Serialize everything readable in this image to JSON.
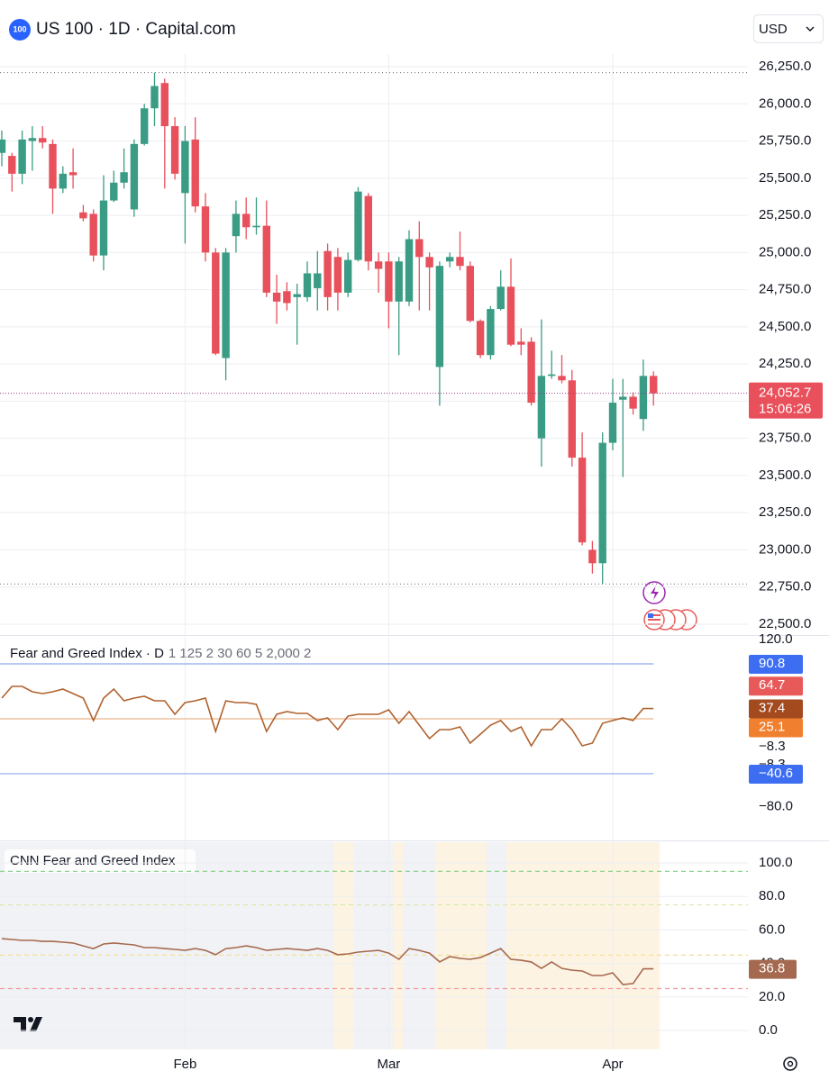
{
  "header": {
    "logo": "100",
    "title": "US 100 · 1D · Capital.com",
    "currency": "USD"
  },
  "chart_data": [
    {
      "type": "candlestick",
      "categories": [
        null,
        null,
        null,
        null,
        null,
        null,
        null,
        null,
        null,
        null,
        null,
        null,
        null,
        null,
        null,
        null,
        null,
        null,
        "Feb",
        null,
        null,
        null,
        null,
        null,
        null,
        null,
        null,
        null,
        null,
        null,
        null,
        null,
        null,
        null,
        null,
        null,
        null,
        null,
        "Mar",
        null,
        null,
        null,
        null,
        null,
        null,
        null,
        null,
        null,
        null,
        null,
        null,
        null,
        null,
        null,
        null,
        null,
        null,
        null,
        null,
        null,
        "Apr",
        null,
        null,
        null,
        null
      ],
      "open": [
        25670,
        25650,
        25530,
        25750,
        25770,
        25730,
        25430,
        25540,
        25270,
        25260,
        24980,
        25350,
        25470,
        25290,
        25730,
        25970,
        26140,
        25850,
        25400,
        25760,
        25310,
        25000,
        24290,
        25110,
        25260,
        25170,
        25180,
        24730,
        24740,
        24700,
        24700,
        24760,
        25010,
        24970,
        24730,
        24950,
        25380,
        24940,
        24940,
        24670,
        24670,
        25090,
        24970,
        24230,
        24940,
        24970,
        24910,
        24540,
        24310,
        24620,
        24770,
        24400,
        24400,
        23750,
        24170,
        24170,
        24140,
        23620,
        23000,
        22910,
        23720,
        24010,
        24030,
        23880,
        24170
      ],
      "high": [
        25820,
        25670,
        25820,
        25850,
        25850,
        25760,
        25580,
        25700,
        25320,
        25290,
        25520,
        25550,
        25700,
        25760,
        26000,
        26210,
        26170,
        25910,
        25850,
        25910,
        25400,
        25030,
        25030,
        25350,
        25370,
        25370,
        25350,
        24850,
        24800,
        24790,
        24940,
        25010,
        25060,
        25030,
        25000,
        25440,
        25400,
        25000,
        25000,
        24970,
        25150,
        25210,
        25000,
        24940,
        25000,
        25140,
        24940,
        24550,
        24640,
        24880,
        24960,
        24490,
        24430,
        24550,
        24340,
        24310,
        24210,
        23790,
        23060,
        23790,
        24150,
        24150,
        24060,
        24280,
        24200
      ],
      "low": [
        25580,
        25410,
        25460,
        25550,
        25700,
        25260,
        25400,
        25430,
        25210,
        24940,
        24880,
        25340,
        25430,
        25240,
        25720,
        25850,
        25430,
        25490,
        25060,
        25270,
        24940,
        24310,
        24140,
        25000,
        25090,
        25120,
        24700,
        24520,
        24610,
        24380,
        24670,
        24610,
        24610,
        24610,
        24700,
        24940,
        24880,
        24730,
        24490,
        24310,
        24640,
        24610,
        24610,
        23970,
        24900,
        24880,
        24530,
        24290,
        24280,
        24610,
        24370,
        24310,
        23970,
        23560,
        24150,
        24120,
        23560,
        23030,
        22840,
        22770,
        23670,
        23490,
        23910,
        23800,
        23970
      ],
      "close": [
        25760,
        25530,
        25760,
        25770,
        25740,
        25430,
        25530,
        25520,
        25230,
        24980,
        25350,
        25470,
        25540,
        25730,
        25970,
        26120,
        25850,
        25530,
        25750,
        25310,
        25000,
        24320,
        25000,
        25260,
        25170,
        25180,
        24730,
        24670,
        24660,
        24720,
        24860,
        24860,
        24700,
        24730,
        24950,
        25410,
        24940,
        24890,
        24670,
        24940,
        25090,
        24970,
        24900,
        24910,
        24970,
        24910,
        24540,
        24310,
        24620,
        24770,
        24380,
        24380,
        23990,
        24170,
        24180,
        24140,
        23620,
        23050,
        22910,
        23720,
        23990,
        24030,
        23950,
        24170,
        24052.7
      ],
      "up_color": "#3a9c84",
      "down_color": "#e8505b",
      "ylim": [
        22427,
        26335
      ],
      "yticks": [
        {
          "value": 22500,
          "label": "22,500.0"
        },
        {
          "value": 22750,
          "label": "22,750.0"
        },
        {
          "value": 23000,
          "label": "23,000.0"
        },
        {
          "value": 23250,
          "label": "23,250.0"
        },
        {
          "value": 23500,
          "label": "23,500.0"
        },
        {
          "value": 23750,
          "label": "23,750.0"
        },
        {
          "value": 24000,
          "label": "24,000.0"
        },
        {
          "value": 24250,
          "label": "24,250.0"
        },
        {
          "value": 24500,
          "label": "24,500.0"
        },
        {
          "value": 24750,
          "label": "24,750.0"
        },
        {
          "value": 25000,
          "label": "25,000.0"
        },
        {
          "value": 25250,
          "label": "25,250.0"
        },
        {
          "value": 25500,
          "label": "25,500.0"
        },
        {
          "value": 25750,
          "label": "25,750.0"
        },
        {
          "value": 26000,
          "label": "26,000.0"
        },
        {
          "value": 26250,
          "label": "26,250.0"
        }
      ],
      "grid": true,
      "price_label": {
        "value": 24052.7,
        "label": "24,052.7",
        "color": "#e8505b"
      },
      "countdown": "15:06:26"
    },
    {
      "type": "line",
      "title": "Fear and Greed Index · D",
      "params": "1 125 2 30 60 5 2,000 2",
      "color": "#b0622e",
      "values": [
        49.9,
        63.9,
        63.9,
        57.4,
        55.2,
        57.4,
        60.6,
        55.2,
        49.9,
        23.0,
        49.9,
        60.6,
        46.6,
        49.9,
        52.0,
        46.6,
        46.6,
        30.5,
        44.5,
        46.6,
        49.9,
        10.0,
        46.6,
        44.5,
        44.5,
        42.3,
        10.0,
        30.5,
        33.7,
        31.5,
        31.5,
        23.0,
        26.1,
        12.1,
        28.3,
        30.5,
        30.5,
        30.5,
        35.8,
        19.7,
        33.7,
        17.5,
        1.4,
        12.1,
        12.1,
        15.4,
        -4.0,
        6.7,
        17.5,
        23.0,
        10.0,
        15.4,
        -7.3,
        12.1,
        12.1,
        25.1,
        12.1,
        -7.3,
        -4.0,
        19.7,
        23.0,
        26.1,
        23.0,
        37.4,
        37.4
      ],
      "ylim": [
        -119.3,
        124.2
      ],
      "yticks": [
        {
          "value": 120,
          "label": "120.0"
        },
        {
          "value": 64.7,
          "label": "64.7"
        },
        {
          "value": -8.3,
          "label": "−8.3"
        },
        {
          "value": -80,
          "label": "−80.0"
        }
      ],
      "grid": false,
      "levels": [
        {
          "value": 90.8,
          "color": "#8fa8f0"
        },
        {
          "value": 25.1,
          "color": "#e9b48a"
        },
        {
          "value": -40.6,
          "color": "#8fa8f0"
        }
      ],
      "markers": [
        {
          "value": 90.8,
          "color": "#3d6ef2"
        },
        {
          "value": 64.7,
          "color": "#e85a5a"
        },
        {
          "value": 37.4,
          "color": "#a34a1f"
        },
        {
          "value": 25.1,
          "color": "#f08030"
        },
        {
          "value": -8.3,
          "label": "−8.3"
        },
        {
          "value": -40.6,
          "label": "−40.6",
          "color": "#3d6ef2"
        }
      ]
    },
    {
      "type": "line",
      "title": "CNN Fear and Greed Index",
      "color": "#a5694f",
      "values": [
        54.8,
        54.3,
        53.8,
        53.8,
        53.2,
        53.2,
        52.7,
        52.2,
        50.5,
        48.9,
        51.6,
        52.2,
        51.6,
        51.1,
        49.5,
        49.5,
        48.9,
        48.4,
        47.8,
        48.9,
        47.8,
        45.2,
        48.9,
        49.5,
        50.5,
        49.5,
        47.8,
        48.4,
        48.9,
        48.4,
        47.8,
        48.9,
        47.8,
        45.2,
        45.7,
        46.8,
        47.3,
        47.8,
        46.2,
        42.5,
        48.9,
        47.8,
        46.2,
        40.9,
        44.1,
        43.0,
        42.5,
        43.5,
        46.2,
        48.9,
        42.5,
        41.9,
        40.9,
        37.1,
        40.9,
        37.1,
        36.0,
        35.5,
        32.8,
        32.8,
        34.4,
        27.4,
        28.0,
        36.8,
        36.8
      ],
      "ylim": [
        -11.3,
        112.4
      ],
      "yticks": [
        {
          "value": 0,
          "label": "0.0"
        },
        {
          "value": 20,
          "label": "20.0"
        },
        {
          "value": 40,
          "label": "40.0"
        },
        {
          "value": 60,
          "label": "60.0"
        },
        {
          "value": 80,
          "label": "80.0"
        },
        {
          "value": 100,
          "label": "100.0"
        }
      ],
      "grid": true,
      "levels_dashed": true,
      "levels": [
        {
          "value": 95,
          "color": "#8ed38e"
        },
        {
          "value": 75,
          "color": "#d6eaa8"
        },
        {
          "value": 45,
          "color": "#f3dd8a"
        },
        {
          "value": 25,
          "color": "#f29a9a"
        }
      ],
      "last_value_label": true
    }
  ]
}
